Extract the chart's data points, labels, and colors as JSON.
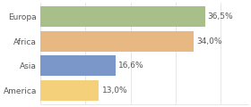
{
  "categories": [
    "Europa",
    "Africa",
    "Asia",
    "America"
  ],
  "values": [
    36.5,
    34.0,
    16.6,
    13.0
  ],
  "labels": [
    "36,5%",
    "34,0%",
    "16,6%",
    "13,0%"
  ],
  "bar_colors": [
    "#a8bf8a",
    "#e8b882",
    "#7b96c8",
    "#f5d07a"
  ],
  "background_color": "#ffffff",
  "xlim": [
    0,
    46
  ],
  "bar_height": 0.82,
  "label_fontsize": 6.5,
  "tick_fontsize": 6.5,
  "grid_color": "#dddddd"
}
